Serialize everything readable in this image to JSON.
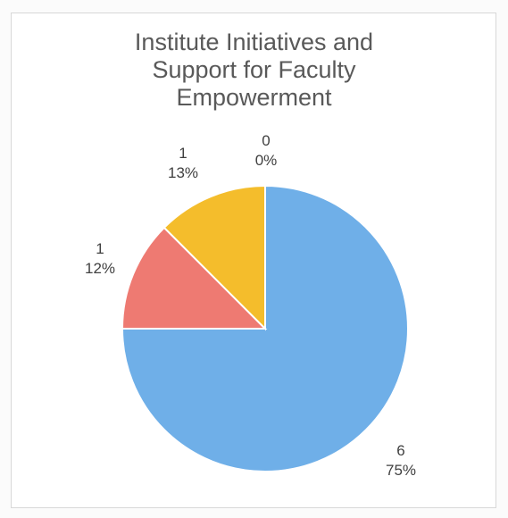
{
  "chart_data": {
    "type": "pie",
    "title": "Institute Initiatives and Support for Faculty Empowerment",
    "title_lines": [
      "Institute Initiatives and",
      "Support for Faculty",
      "Empowerment"
    ],
    "slices": [
      {
        "value": 6,
        "percent": "75%",
        "value_label": "6",
        "color": "#6fafe8"
      },
      {
        "value": 1,
        "percent": "12%",
        "value_label": "1",
        "color": "#ee7a72"
      },
      {
        "value": 1,
        "percent": "13%",
        "value_label": "1",
        "color": "#f4bd2c"
      },
      {
        "value": 0,
        "percent": "0%",
        "value_label": "0",
        "color": "#a5a5a5"
      }
    ],
    "legend": "none",
    "start_angle": "12 o'clock, clockwise"
  }
}
